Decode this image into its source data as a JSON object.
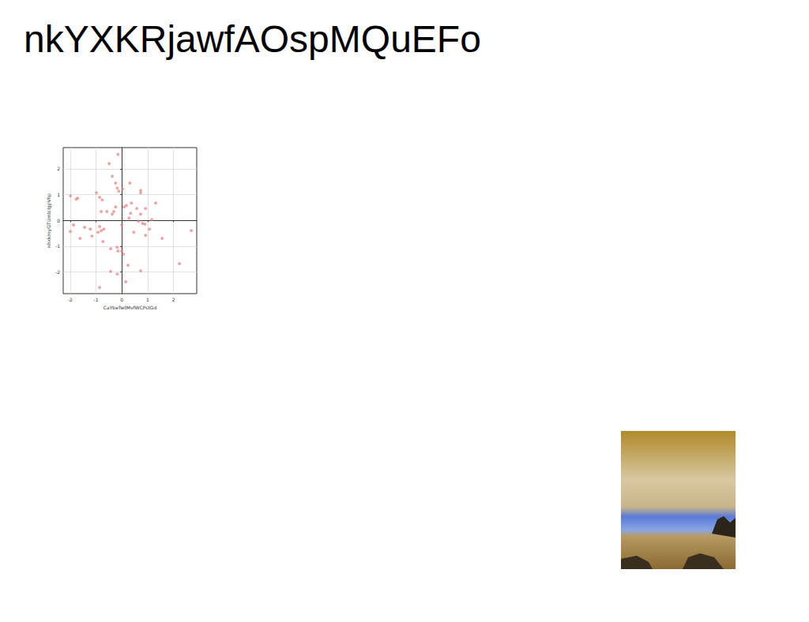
{
  "title": "nkYXKRjawfAOspMQuEFo",
  "chart_data": {
    "type": "scatter",
    "x_label": "CaYbeTwtMvfWCPstGd",
    "y_label": "nhxkrnyGTUmtclgpVhp",
    "color": "#e07b7f",
    "grid": true,
    "xlim": [
      -2.27,
      2.9
    ],
    "xticks": [
      -2,
      -1,
      0,
      1,
      2
    ],
    "ylim": [
      -2.84,
      2.82
    ],
    "yticks": [
      -2,
      -1,
      0,
      1,
      2
    ],
    "x": [
      -0.15,
      -0.49,
      -0.37,
      -0.24,
      -0.18,
      -0.12,
      0.03,
      0.31,
      -0.98,
      -0.86,
      -0.76,
      -1.99,
      -1.77,
      -1.71,
      0.73,
      0.73,
      1.31,
      0.37,
      0.18,
      0.09,
      0.58,
      0.92,
      -0.24,
      -0.31,
      -0.37,
      -0.8,
      -0.58,
      0.34,
      0.73,
      0.28,
      1.16,
      0.64,
      0.8,
      0.89,
      0,
      -1.87,
      -1.99,
      -1.44,
      -1.22,
      -0.86,
      -0.7,
      -0.8,
      -0.92,
      -1.16,
      -1.62,
      -0.73,
      0.46,
      1.07,
      0.92,
      1.56,
      2.69,
      -0.18,
      -0.15,
      -0.43,
      0,
      0.06,
      0.24,
      -0.43,
      -0.18,
      0.73,
      2.23,
      0.15,
      -0.86
    ],
    "values": [
      2.56,
      2.2,
      1.71,
      1.44,
      1.25,
      1.13,
      1.22,
      1.44,
      1.07,
      0.89,
      0.79,
      0.95,
      0.82,
      0.86,
      1.16,
      1.07,
      0.67,
      0.67,
      0.58,
      0.52,
      0.46,
      0.46,
      0.52,
      0.34,
      0.24,
      0.34,
      0.34,
      0.27,
      0.24,
      0.09,
      0.03,
      -0.03,
      -0.12,
      -0.15,
      -0.18,
      -0.18,
      -0.43,
      -0.27,
      -0.34,
      -0.24,
      -0.34,
      -0.4,
      -0.46,
      -0.61,
      -0.7,
      -0.82,
      -0.46,
      -0.34,
      -0.58,
      -0.7,
      -0.4,
      -1.04,
      -1.19,
      -1.1,
      -1.19,
      -1.31,
      -1.74,
      -1.98,
      -2.08,
      -1.95,
      -1.68,
      -2.38,
      -2.6
    ]
  }
}
